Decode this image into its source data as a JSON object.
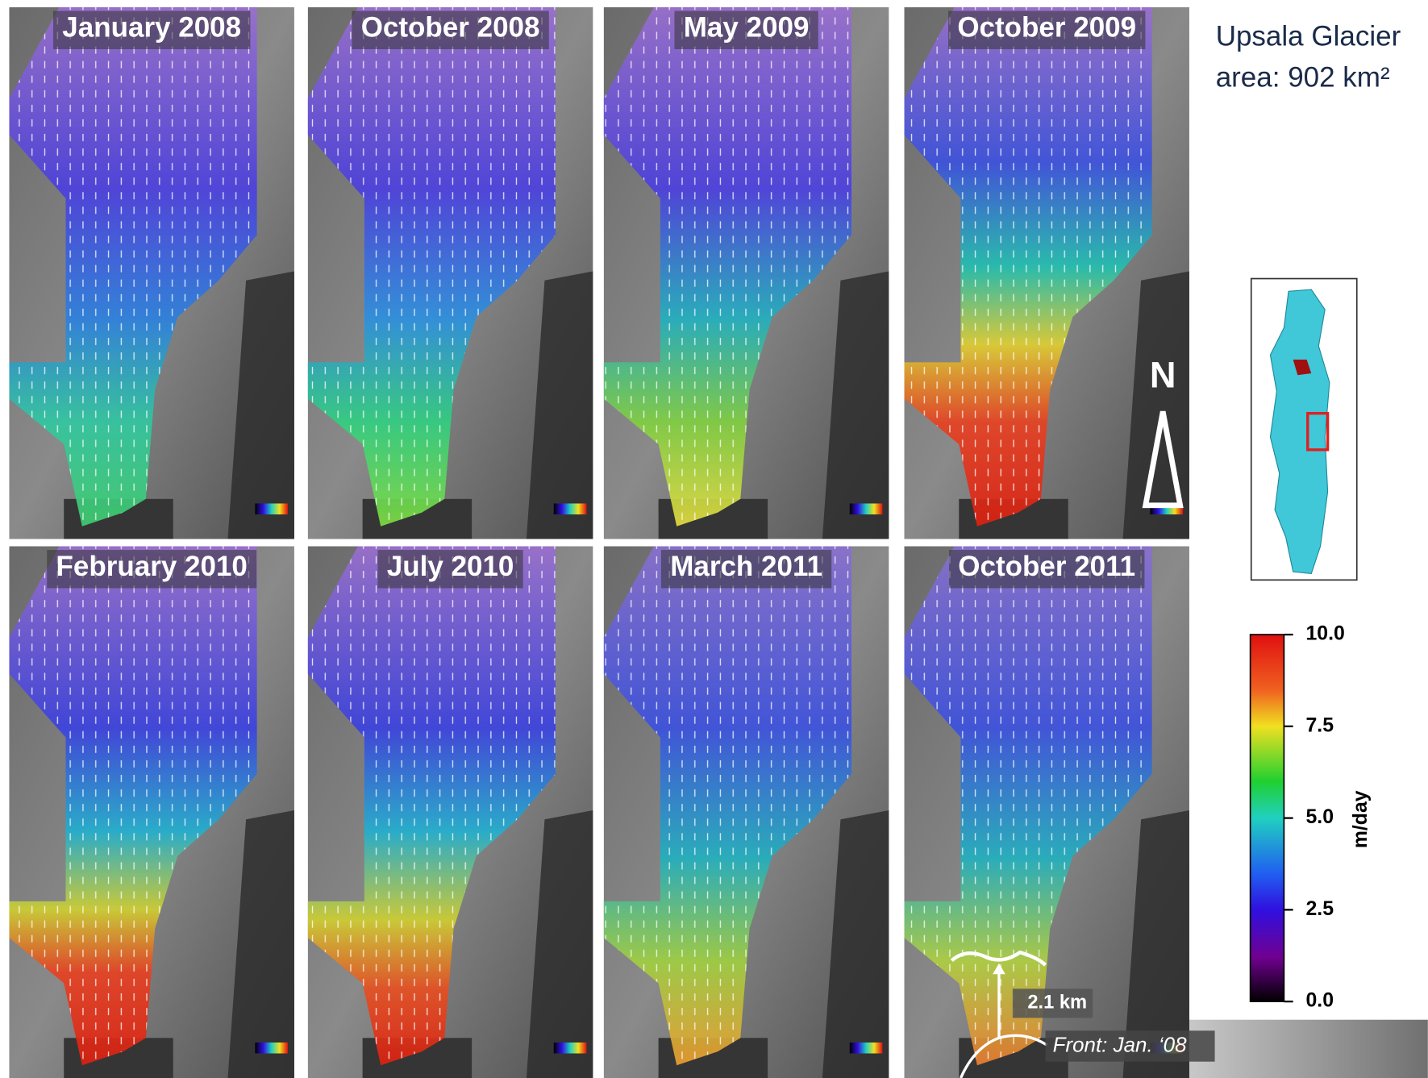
{
  "panels": [
    "January 2008",
    "October 2008",
    "May 2009",
    "October 2009",
    "February 2010",
    "July 2010",
    "March 2011",
    "October 2011"
  ],
  "side": {
    "title": "Upsala Glacier",
    "area": "area: 902 km²"
  },
  "north": "N",
  "annotation": {
    "distance": "2.1 km",
    "front": "Front: Jan. ‘08"
  },
  "colorbar": {
    "label": "m/day",
    "lim": [
      0,
      10
    ],
    "ticks": [
      {
        "value": 0,
        "label": "0.0"
      },
      {
        "value": 2.5,
        "label": "2.5"
      },
      {
        "value": 5,
        "label": "5.0"
      },
      {
        "value": 7.5,
        "label": "7.5"
      },
      {
        "value": 10,
        "label": "10.0"
      }
    ]
  }
}
